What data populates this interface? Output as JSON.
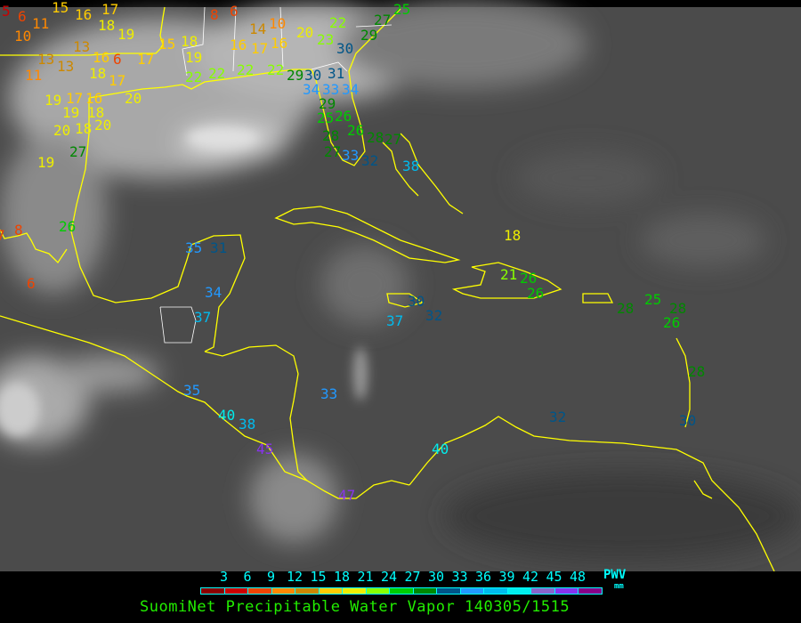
{
  "title": "SuomiNet Precipitable Water Vapor 140305/1515",
  "legend": {
    "unit_label": "PWV",
    "unit": "mm",
    "ticks": [
      "3",
      "6",
      "9",
      "12",
      "15",
      "18",
      "21",
      "24",
      "27",
      "30",
      "33",
      "36",
      "39",
      "42",
      "45",
      "48"
    ],
    "colors": [
      "#8b0000",
      "#cc0000",
      "#ee4400",
      "#ff8800",
      "#cc8800",
      "#ffcc00",
      "#eeee00",
      "#88ff00",
      "#00cc00",
      "#008800",
      "#005588",
      "#2299ff",
      "#00bbee",
      "#00eeee",
      "#8866cc",
      "#8833ee",
      "#880088"
    ]
  },
  "map": {
    "coastline_color": "#ffff00",
    "border_color": "#ffffff",
    "stations": [
      5,
      6,
      11,
      10,
      15,
      16,
      17,
      18,
      19,
      13,
      16,
      6,
      17,
      13,
      13,
      11,
      18,
      17,
      19,
      17,
      16,
      20,
      19,
      18,
      20,
      18,
      20,
      27,
      19,
      15,
      18,
      19,
      22,
      22,
      8,
      6,
      16,
      17,
      16,
      14,
      10,
      20,
      23,
      22,
      30,
      29,
      27,
      25,
      22,
      22,
      29,
      30,
      31,
      34,
      33,
      34,
      29,
      25,
      26,
      26,
      28,
      27,
      28,
      27,
      33,
      32,
      38,
      8,
      7,
      26,
      6,
      35,
      31,
      34,
      37,
      35,
      40,
      38,
      33,
      30,
      32,
      37,
      18,
      21,
      26,
      26,
      28,
      25,
      28,
      26,
      28,
      30,
      32,
      45,
      47,
      40
    ]
  }
}
